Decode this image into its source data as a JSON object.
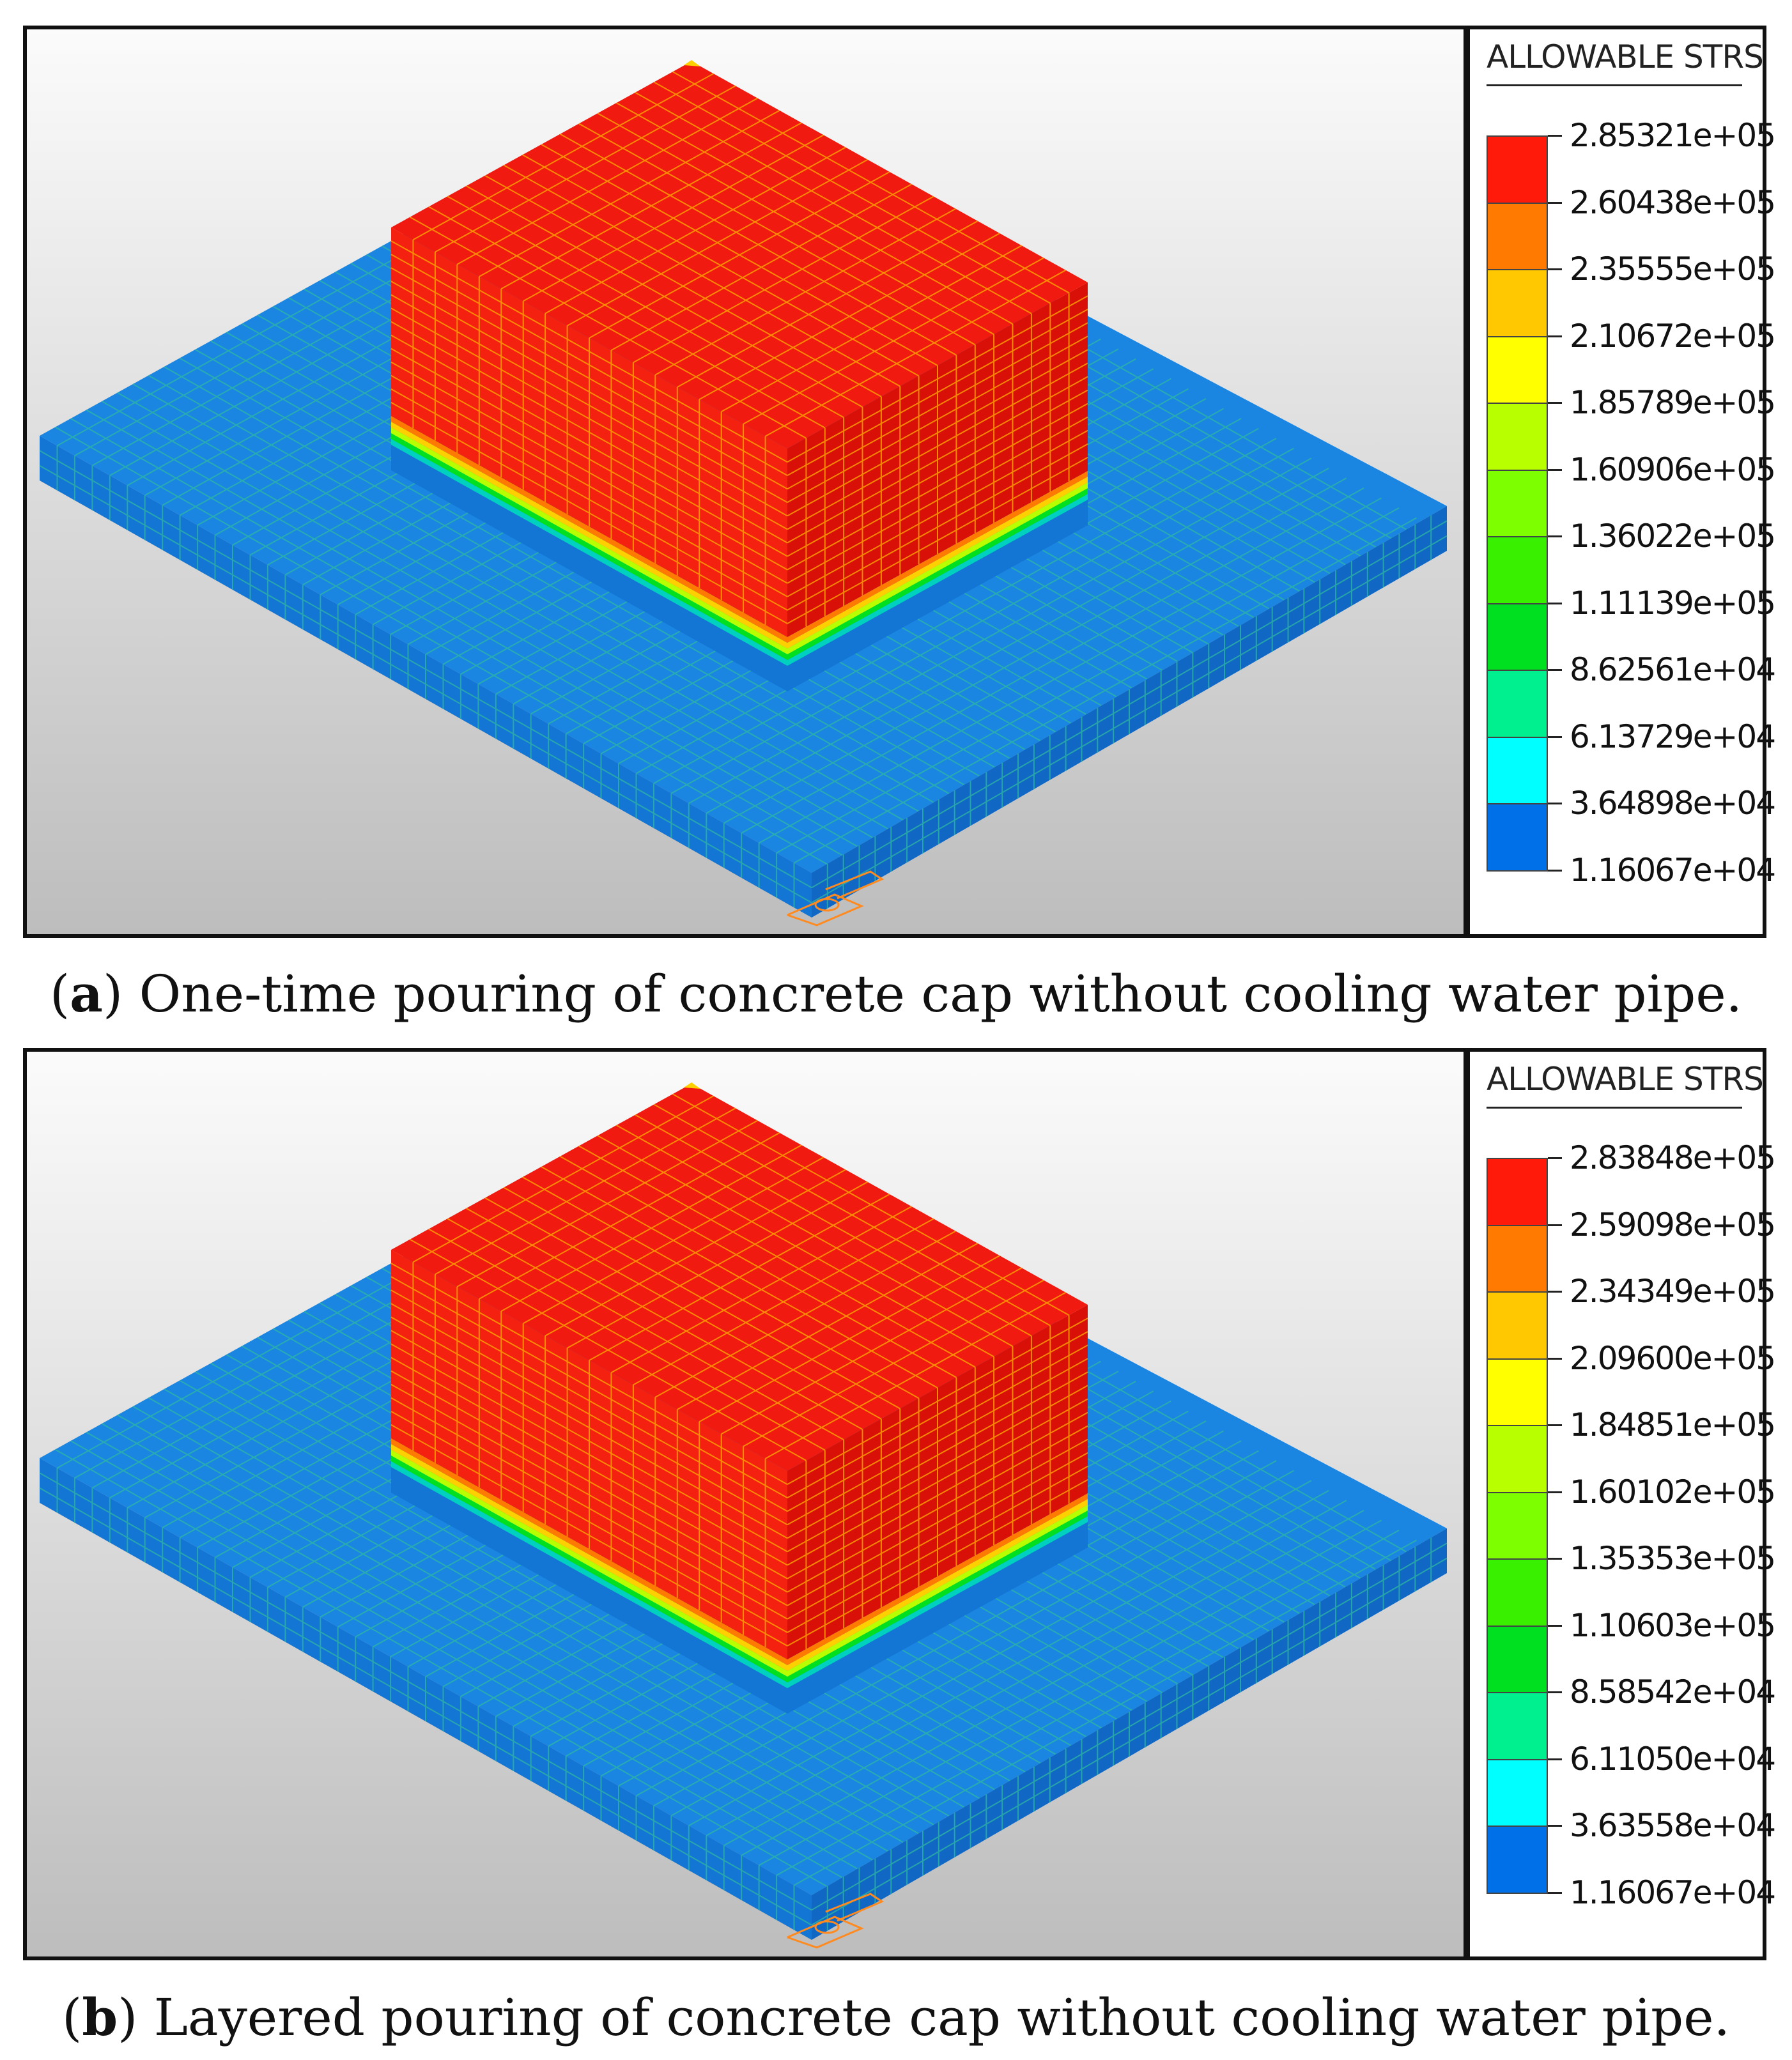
{
  "panels": [
    {
      "id": "a",
      "legend_title": "ALLOWABLE STRS",
      "legend_values": [
        "2.85321e+05",
        "2.60438e+05",
        "2.35555e+05",
        "2.10672e+05",
        "1.85789e+05",
        "1.60906e+05",
        "1.36022e+05",
        "1.11139e+05",
        "8.62561e+04",
        "6.13729e+04",
        "3.64898e+04",
        "1.16067e+04"
      ],
      "caption_letter": "a",
      "caption_text": "One-time pouring of concrete cap without cooling water pipe."
    },
    {
      "id": "b",
      "legend_title": "ALLOWABLE STRS",
      "legend_values": [
        "2.83848e+05",
        "2.59098e+05",
        "2.34349e+05",
        "2.09600e+05",
        "1.84851e+05",
        "1.60102e+05",
        "1.35353e+05",
        "1.10603e+05",
        "8.58542e+04",
        "6.11050e+04",
        "3.63558e+04",
        "1.16067e+04"
      ],
      "caption_letter": "b",
      "caption_text": "Layered pouring of concrete cap without cooling water pipe."
    }
  ],
  "colors": {
    "legend_bands": [
      "#ff1a0a",
      "#ff7a00",
      "#ffc800",
      "#ffff00",
      "#b8ff00",
      "#7dff00",
      "#38f000",
      "#00e020",
      "#00f090",
      "#00ffff",
      "#0070e8"
    ],
    "base_top": "#1a86e2",
    "base_side": "#1476d4",
    "block_top": "#f01a10",
    "block_left": "#f42010",
    "block_right": "#d81008",
    "mesh_base": "#2eb8a0",
    "mesh_block": "#ffb000"
  }
}
